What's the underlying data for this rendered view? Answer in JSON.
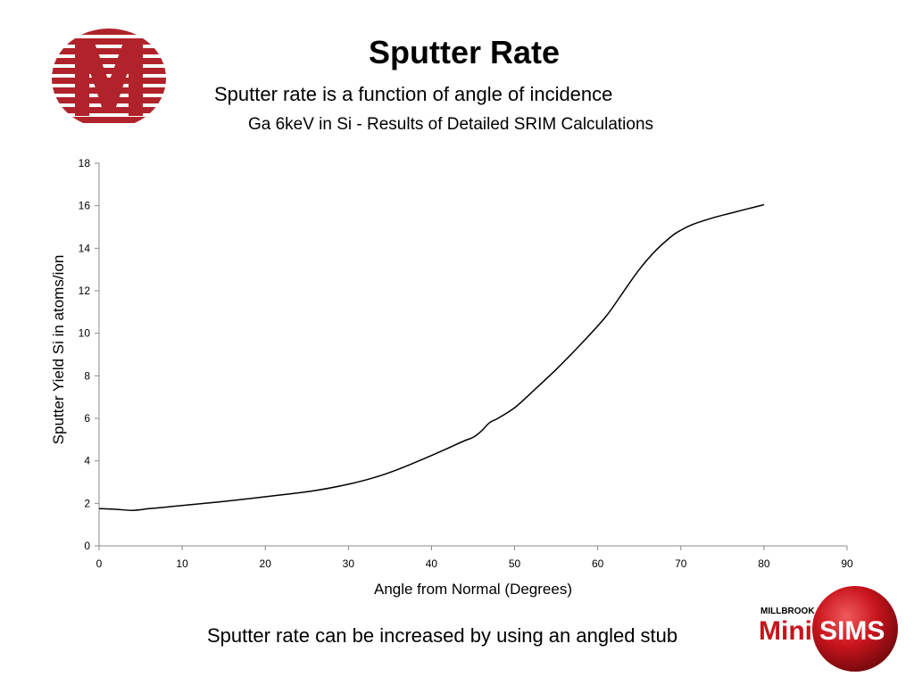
{
  "slide": {
    "title": "Sputter Rate",
    "subtitle": "Sputter rate is a function of angle of incidence",
    "footer": "Sputter rate can be increased by using an angled stub"
  },
  "branding": {
    "left_logo_icon": "striped-m-circle-logo",
    "right_logo": {
      "top": "MILLBROOK",
      "left": "Mini",
      "right": "SIMS"
    },
    "accent_color": "#b0232a"
  },
  "chart_data": {
    "type": "line",
    "title": "Ga 6keV in Si - Results of Detailed SRIM Calculations",
    "xlabel": "Angle from Normal (Degrees)",
    "ylabel": "Sputter Yield Si in atoms/ion",
    "xlim": [
      0,
      90
    ],
    "ylim": [
      0,
      18
    ],
    "x_ticks": [
      0,
      10,
      20,
      30,
      40,
      50,
      60,
      70,
      80,
      90
    ],
    "y_ticks": [
      0,
      2,
      4,
      6,
      8,
      10,
      12,
      14,
      16,
      18
    ],
    "grid": false,
    "legend": "none",
    "line_color": "#000000",
    "series": [
      {
        "x": [
          0,
          2,
          4,
          6,
          8,
          10,
          14,
          18,
          22,
          26,
          30,
          33,
          36,
          40,
          42,
          44,
          45,
          46,
          47,
          48,
          50,
          52,
          55,
          58,
          61,
          63,
          65,
          67,
          69,
          70,
          71,
          72,
          74,
          76,
          78,
          80
        ],
        "values": [
          1.75,
          1.72,
          1.67,
          1.75,
          1.82,
          1.9,
          2.05,
          2.22,
          2.4,
          2.6,
          2.9,
          3.2,
          3.6,
          4.25,
          4.6,
          4.95,
          5.1,
          5.4,
          5.8,
          6.0,
          6.5,
          7.2,
          8.3,
          9.5,
          10.8,
          11.9,
          13.0,
          13.9,
          14.6,
          14.85,
          15.05,
          15.2,
          15.45,
          15.65,
          15.85,
          16.05
        ]
      }
    ]
  }
}
